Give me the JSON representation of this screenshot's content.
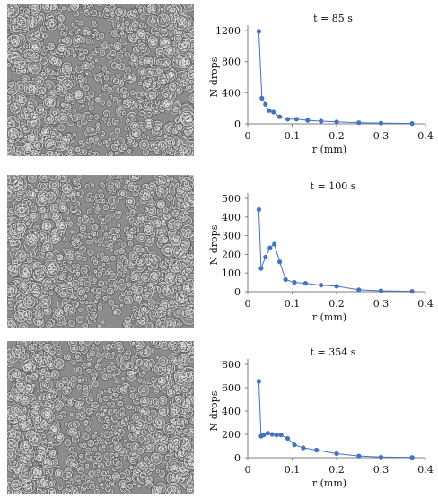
{
  "colors": {
    "series": "#4472c4",
    "marker": "#4472c4",
    "axis": "#7f7f7f",
    "image_bg": "#8c8c8c"
  },
  "chart_data": [
    {
      "type": "scatter",
      "title": "t = 85 s",
      "xlabel": "r (mm)",
      "ylabel": "N drops",
      "xlim": [
        0,
        0.4
      ],
      "ylim": [
        0,
        1200
      ],
      "xticks": [
        "0",
        "0.1",
        "0.2",
        "0.3",
        "0.4"
      ],
      "yticks": [
        "0",
        "400",
        "800",
        "1200"
      ],
      "x": [
        0.025,
        0.032,
        0.04,
        0.048,
        0.058,
        0.072,
        0.09,
        0.11,
        0.135,
        0.165,
        0.2,
        0.25,
        0.3,
        0.37
      ],
      "y": [
        1190,
        330,
        250,
        170,
        150,
        90,
        60,
        60,
        45,
        35,
        25,
        15,
        10,
        5
      ],
      "grid": false,
      "line": "straight"
    },
    {
      "type": "scatter",
      "title": "t = 100 s",
      "xlabel": "r (mm)",
      "ylabel": "N drops",
      "xlim": [
        0,
        0.4
      ],
      "ylim": [
        0,
        500
      ],
      "xticks": [
        "0",
        "0.1",
        "0.2",
        "0.3",
        "0.4"
      ],
      "yticks": [
        "0",
        "100",
        "200",
        "300",
        "400",
        "500"
      ],
      "x": [
        0.025,
        0.03,
        0.04,
        0.05,
        0.06,
        0.072,
        0.085,
        0.105,
        0.13,
        0.165,
        0.2,
        0.25,
        0.3,
        0.37
      ],
      "y": [
        440,
        125,
        185,
        235,
        255,
        160,
        65,
        50,
        45,
        35,
        30,
        10,
        5,
        2
      ],
      "grid": false,
      "line": "straight"
    },
    {
      "type": "scatter",
      "title": "t = 354 s",
      "xlabel": "r (mm)",
      "ylabel": "N drops",
      "xlim": [
        0,
        0.4
      ],
      "ylim": [
        0,
        800
      ],
      "xticks": [
        "0",
        "0.1",
        "0.2",
        "0.3",
        "0.4"
      ],
      "yticks": [
        "0",
        "200",
        "400",
        "600",
        "800"
      ],
      "x": [
        0.025,
        0.03,
        0.036,
        0.045,
        0.055,
        0.065,
        0.075,
        0.09,
        0.105,
        0.125,
        0.155,
        0.2,
        0.25,
        0.3,
        0.37
      ],
      "y": [
        655,
        185,
        195,
        210,
        200,
        195,
        195,
        165,
        110,
        85,
        65,
        35,
        15,
        5,
        2
      ],
      "grid": false,
      "line": "straight"
    }
  ]
}
